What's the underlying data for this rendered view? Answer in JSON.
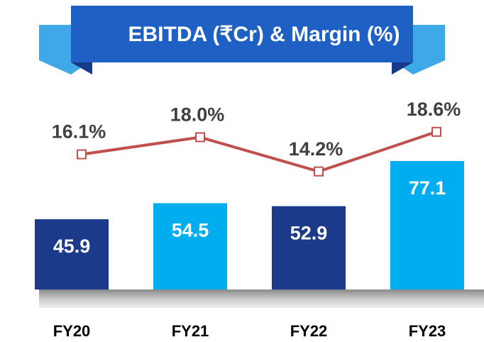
{
  "chart_data": {
    "type": "bar-line",
    "title": "EBITDA (₹Cr) & Margin (%)",
    "categories": [
      "FY20",
      "FY21",
      "FY22",
      "FY23"
    ],
    "series": [
      {
        "type": "bar",
        "colors": [
          "#1b3a8a",
          "#00aeef",
          "#1b3a8a",
          "#00aeef"
        ],
        "values": [
          45.9,
          54.5,
          52.9,
          77.1
        ]
      },
      {
        "type": "line",
        "color": "#c0504d",
        "values": [
          16.1,
          18.0,
          14.2,
          18.6
        ],
        "value_labels": [
          "16.1%",
          "18.0%",
          "14.2%",
          "18.6%"
        ]
      }
    ]
  }
}
